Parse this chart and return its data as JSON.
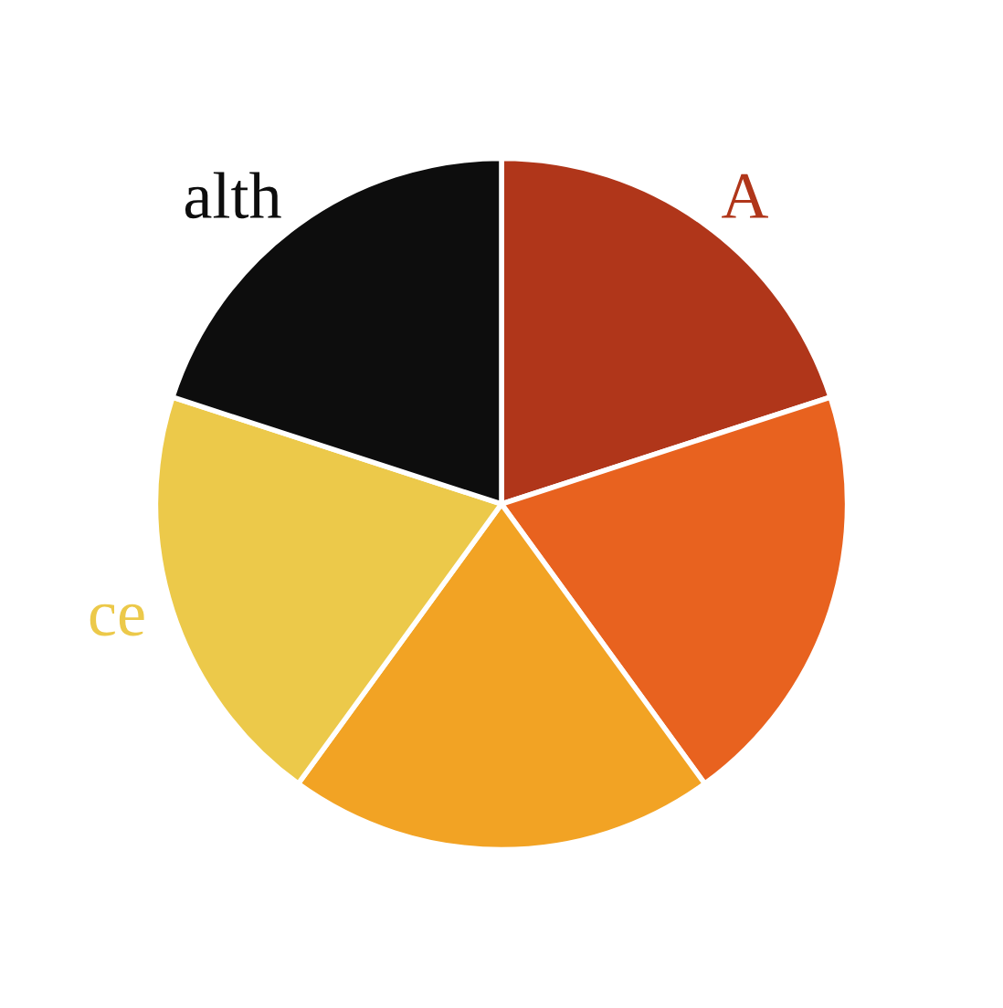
{
  "chart_data": {
    "type": "pie",
    "categories": [
      "A",
      null,
      null,
      "ce",
      "alth"
    ],
    "values": [
      20,
      20,
      20,
      20,
      20
    ],
    "colors": [
      "#b0361a",
      "#e8621f",
      "#f2a324",
      "#ecc94a",
      "#0d0d0d"
    ]
  }
}
